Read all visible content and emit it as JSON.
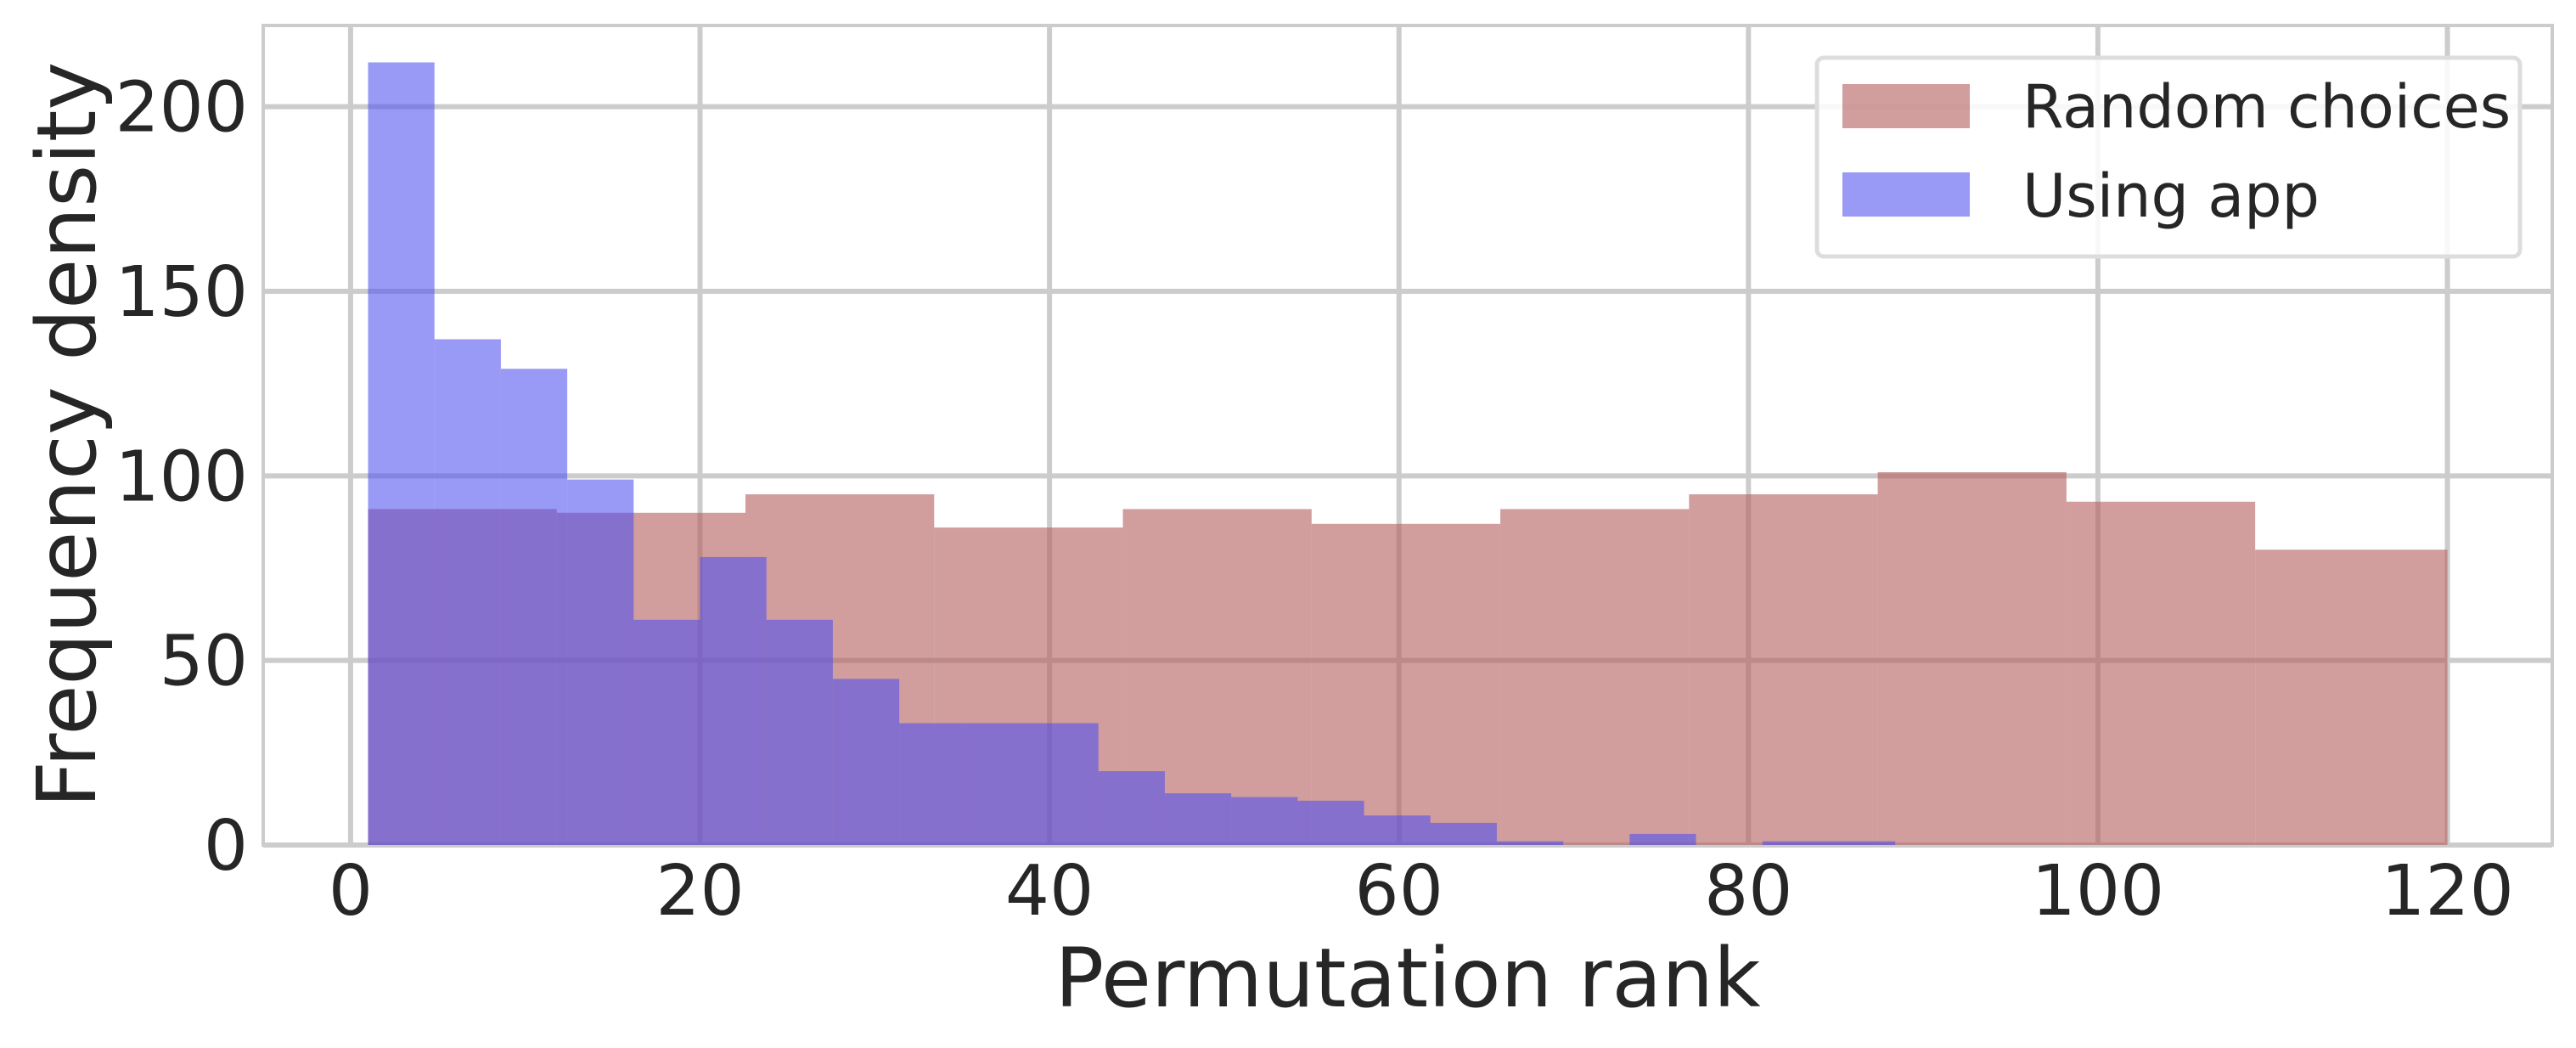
{
  "chart_data": {
    "type": "bar",
    "title": "",
    "xlabel": "Permutation rank",
    "ylabel": "Frequency density",
    "xlim": [
      -5,
      126
    ],
    "ylim": [
      0,
      222
    ],
    "x_ticks": [
      "0",
      "20",
      "40",
      "60",
      "80",
      "100",
      "120"
    ],
    "y_ticks": [
      "0",
      "50",
      "100",
      "150",
      "200"
    ],
    "grid": true,
    "legend_position": "top-right",
    "series": [
      {
        "name": "Random choices",
        "color": "#b35c5c",
        "opacity": 0.6,
        "bins": [
          {
            "x0": 1,
            "x1": 11.8,
            "value": 91
          },
          {
            "x0": 11.8,
            "x1": 22.6,
            "value": 90
          },
          {
            "x0": 22.6,
            "x1": 33.4,
            "value": 95
          },
          {
            "x0": 33.4,
            "x1": 44.2,
            "value": 86
          },
          {
            "x0": 44.2,
            "x1": 55,
            "value": 91
          },
          {
            "x0": 55,
            "x1": 65.8,
            "value": 87
          },
          {
            "x0": 65.8,
            "x1": 76.6,
            "value": 91
          },
          {
            "x0": 76.6,
            "x1": 87.4,
            "value": 95
          },
          {
            "x0": 87.4,
            "x1": 98.2,
            "value": 101
          },
          {
            "x0": 98.2,
            "x1": 109,
            "value": 93
          },
          {
            "x0": 109,
            "x1": 120,
            "value": 80
          }
        ]
      },
      {
        "name": "Using app",
        "color": "#5050f0",
        "opacity": 0.58,
        "bins": [
          {
            "x0": 1,
            "x1": 4.8,
            "value": 212
          },
          {
            "x0": 4.8,
            "x1": 8.6,
            "value": 137
          },
          {
            "x0": 8.6,
            "x1": 12.4,
            "value": 129
          },
          {
            "x0": 12.4,
            "x1": 16.2,
            "value": 99
          },
          {
            "x0": 16.2,
            "x1": 20,
            "value": 61
          },
          {
            "x0": 20,
            "x1": 23.8,
            "value": 78
          },
          {
            "x0": 23.8,
            "x1": 27.6,
            "value": 61
          },
          {
            "x0": 27.6,
            "x1": 31.4,
            "value": 45
          },
          {
            "x0": 31.4,
            "x1": 35.2,
            "value": 33
          },
          {
            "x0": 35.2,
            "x1": 39,
            "value": 33
          },
          {
            "x0": 39,
            "x1": 42.8,
            "value": 33
          },
          {
            "x0": 42.8,
            "x1": 46.6,
            "value": 20
          },
          {
            "x0": 46.6,
            "x1": 50.4,
            "value": 14
          },
          {
            "x0": 50.4,
            "x1": 54.2,
            "value": 13
          },
          {
            "x0": 54.2,
            "x1": 58,
            "value": 12
          },
          {
            "x0": 58,
            "x1": 61.8,
            "value": 8
          },
          {
            "x0": 61.8,
            "x1": 65.6,
            "value": 6
          },
          {
            "x0": 65.6,
            "x1": 69.4,
            "value": 1
          },
          {
            "x0": 69.4,
            "x1": 73.2,
            "value": 0
          },
          {
            "x0": 73.2,
            "x1": 77,
            "value": 3
          },
          {
            "x0": 77,
            "x1": 80.8,
            "value": 0
          },
          {
            "x0": 80.8,
            "x1": 84.6,
            "value": 1
          },
          {
            "x0": 84.6,
            "x1": 88.4,
            "value": 1
          }
        ]
      }
    ]
  }
}
